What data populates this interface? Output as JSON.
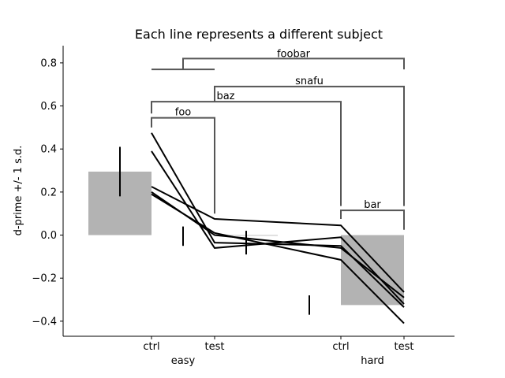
{
  "chart_data": {
    "type": "bar",
    "title": "Each line represents a different subject",
    "xlabel": "",
    "ylabel": "d-prime +/- 1 s.d.",
    "ylim": [
      -0.47,
      0.88
    ],
    "y_ticks": [
      -0.4,
      -0.2,
      0.0,
      0.2,
      0.4,
      0.6,
      0.8
    ],
    "y_tick_labels": [
      "−0.4",
      "−0.2",
      "0.0",
      "0.2",
      "0.4",
      "0.6",
      "0.8"
    ],
    "categories": [
      "ctrl",
      "test",
      "ctrl",
      "test"
    ],
    "groups": [
      {
        "label": "easy",
        "spans": [
          0,
          1
        ]
      },
      {
        "label": "hard",
        "spans": [
          2,
          3
        ]
      }
    ],
    "bar_color": "#b3b3b3",
    "line_color": "#000000",
    "bracket_color": "#555555",
    "bars": [
      {
        "x_from": 0.0,
        "x_to": 0.5,
        "value": 0.295
      },
      {
        "x_from": 1.0,
        "x_to": 1.5,
        "value": 0.0
      },
      {
        "x_from": 2.0,
        "x_to": 2.5,
        "value": -0.325
      }
    ],
    "error_bars": [
      {
        "x": 0.25,
        "low": 0.18,
        "high": 0.41
      },
      {
        "x": 0.75,
        "low": -0.05,
        "high": 0.04
      },
      {
        "x": 1.25,
        "low": -0.09,
        "high": 0.02
      },
      {
        "x": 1.75,
        "low": -0.37,
        "high": -0.28
      }
    ],
    "subject_x": [
      0.5,
      1.0,
      2.0,
      2.5
    ],
    "series": [
      {
        "values": [
          0.475,
          -0.035,
          -0.05,
          -0.335
        ]
      },
      {
        "values": [
          0.39,
          -0.06,
          -0.01,
          -0.32
        ]
      },
      {
        "values": [
          0.225,
          0.075,
          0.045,
          -0.265
        ]
      },
      {
        "values": [
          0.2,
          0.0,
          -0.06,
          -0.29
        ]
      },
      {
        "values": [
          0.19,
          0.01,
          -0.115,
          -0.41
        ]
      }
    ],
    "annotations": [
      {
        "label": "foo",
        "x1": 0.5,
        "x2": 1.0,
        "y1_from": 0.5,
        "y2_from": 0.1,
        "y_top": 0.545
      },
      {
        "label": "baz",
        "x1": 0.5,
        "x2": 2.0,
        "y1_from": 0.565,
        "y2_from": 0.135,
        "y_top": 0.62
      },
      {
        "label": "bar",
        "x1": 2.0,
        "x2": 2.5,
        "y1_from": 0.075,
        "y2_from": 0.025,
        "y_top": 0.115
      },
      {
        "label": "snafu",
        "x1": 1.0,
        "x2": 2.5,
        "y1_from": 0.62,
        "y2_from": 0.135,
        "y_top": 0.69
      },
      {
        "label": "foobar",
        "x1": 0.5,
        "x2": 1.0,
        "y_level": 0.77,
        "x3": 2.5,
        "y3_from": 0.77,
        "y_top": 0.82
      }
    ]
  }
}
